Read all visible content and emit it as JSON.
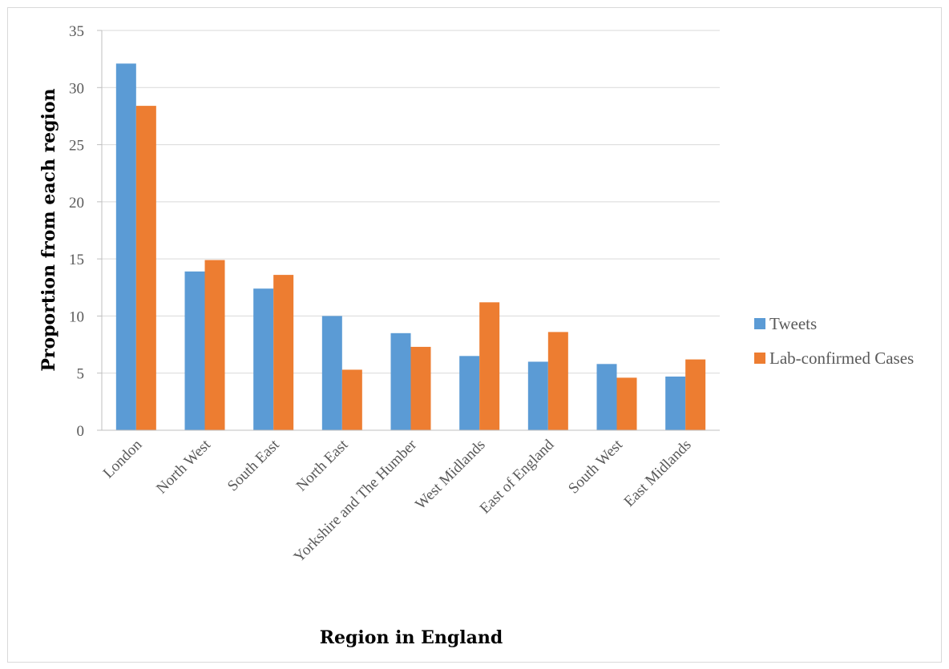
{
  "chart_data": {
    "type": "bar",
    "title": "",
    "xlabel": "Region in England",
    "ylabel": "Proportion from each region",
    "ylim": [
      0,
      35
    ],
    "yticks": [
      0,
      5,
      10,
      15,
      20,
      25,
      30,
      35
    ],
    "grid": true,
    "legend_position": "right",
    "categories": [
      "London",
      "North West",
      "South East",
      "North East",
      "Yorkshire and The Humber",
      "West Midlands",
      "East of England",
      "South West",
      "East Midlands"
    ],
    "series": [
      {
        "name": "Tweets",
        "color": "#5b9bd5",
        "values": [
          32.1,
          13.9,
          12.4,
          10.0,
          8.5,
          6.5,
          6.0,
          5.8,
          4.7
        ]
      },
      {
        "name": "Lab-confirmed Cases",
        "color": "#ed7d31",
        "values": [
          28.4,
          14.9,
          13.6,
          5.3,
          7.3,
          11.2,
          8.6,
          4.6,
          6.2
        ]
      }
    ]
  }
}
